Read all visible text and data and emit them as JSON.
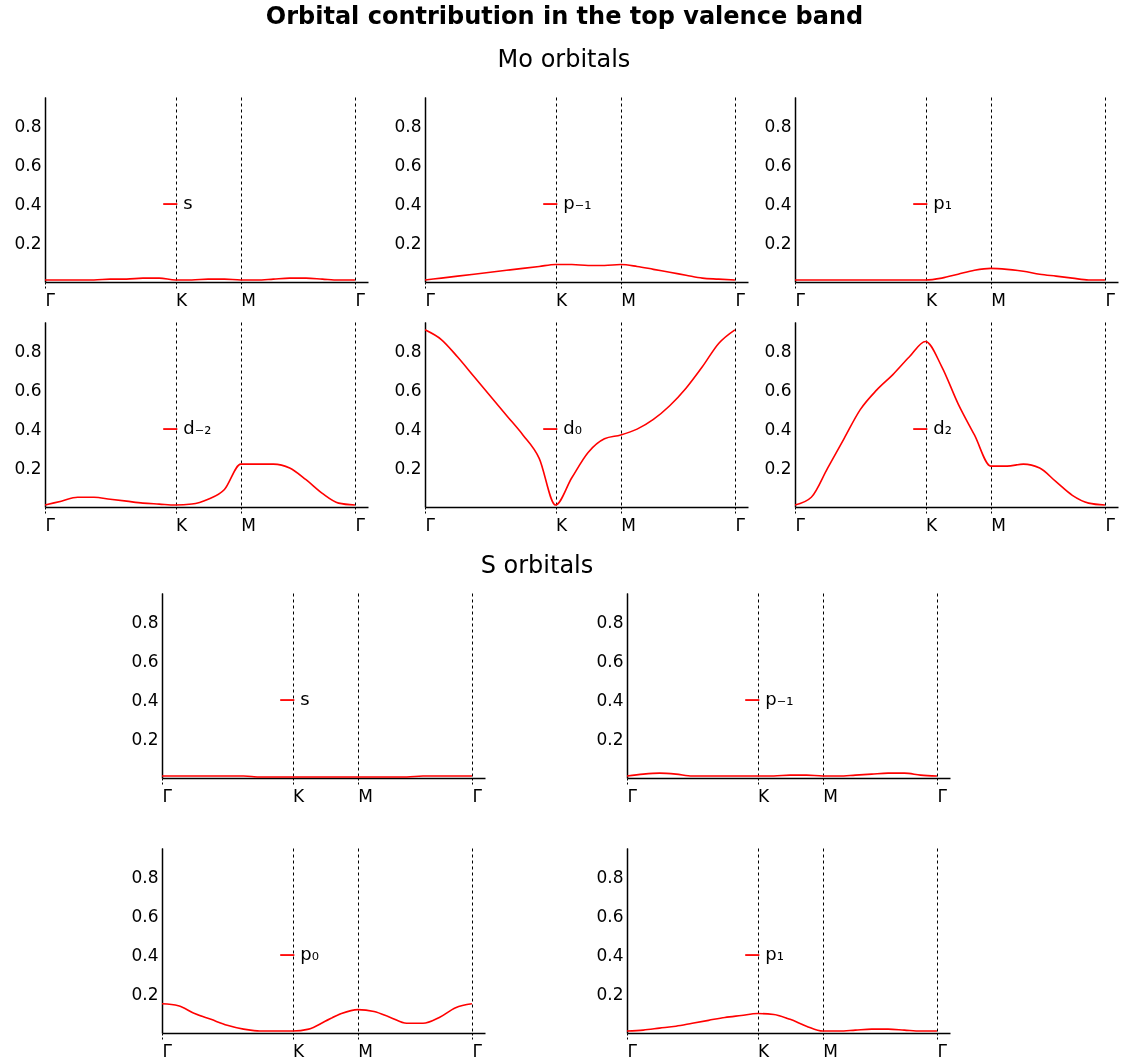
{
  "chart_data": [
    {
      "type": "line",
      "title": "Orbital contribution in the top valence band",
      "categories": [
        "Γ",
        null,
        null,
        null,
        null,
        null,
        null,
        null,
        "K",
        null,
        null,
        null,
        "M",
        null,
        null,
        null,
        null,
        null,
        null,
        "Γ"
      ],
      "series": [
        {
          "name": "s",
          "color": "#ff0000",
          "values": [
            0.01,
            0.01,
            0.01,
            0.01,
            0.015,
            0.015,
            0.02,
            0.02,
            0.01,
            0.01,
            0.015,
            0.015,
            0.01,
            0.01,
            0.015,
            0.02,
            0.02,
            0.015,
            0.01,
            0.01
          ]
        }
      ],
      "ylim": [
        0,
        0.95
      ],
      "yticks": [
        0.2,
        0.4,
        0.6,
        0.8
      ],
      "grid": "x",
      "legend": "center"
    },
    {
      "type": "line",
      "categories": [
        "Γ",
        null,
        null,
        null,
        null,
        null,
        null,
        null,
        "K",
        null,
        null,
        null,
        "M",
        null,
        null,
        null,
        null,
        null,
        null,
        "Γ"
      ],
      "subtitle": "Mo orbitals",
      "series": [
        {
          "name": "p₋₁",
          "color": "#ff0000",
          "values": [
            0.01,
            0.02,
            0.03,
            0.04,
            0.05,
            0.06,
            0.07,
            0.08,
            0.09,
            0.09,
            0.085,
            0.085,
            0.09,
            0.08,
            0.065,
            0.05,
            0.035,
            0.02,
            0.015,
            0.01
          ]
        }
      ],
      "ylim": [
        0,
        0.95
      ],
      "yticks": [
        0.2,
        0.4,
        0.6,
        0.8
      ],
      "grid": "x",
      "legend": "center"
    },
    {
      "type": "line",
      "categories": [
        "Γ",
        null,
        null,
        null,
        null,
        null,
        null,
        null,
        "K",
        null,
        null,
        null,
        "M",
        null,
        null,
        null,
        null,
        null,
        null,
        "Γ"
      ],
      "series": [
        {
          "name": "p₁",
          "color": "#ff0000",
          "values": [
            0.01,
            0.01,
            0.01,
            0.01,
            0.01,
            0.01,
            0.01,
            0.01,
            0.01,
            0.02,
            0.04,
            0.06,
            0.07,
            0.065,
            0.055,
            0.04,
            0.03,
            0.02,
            0.01,
            0.01
          ]
        }
      ],
      "ylim": [
        0,
        0.95
      ],
      "yticks": [
        0.2,
        0.4,
        0.6,
        0.8
      ],
      "grid": "x",
      "legend": "center"
    },
    {
      "type": "line",
      "categories": [
        "Γ",
        null,
        null,
        null,
        null,
        null,
        null,
        null,
        "K",
        null,
        null,
        null,
        "M",
        null,
        null,
        null,
        null,
        null,
        null,
        "Γ"
      ],
      "series": [
        {
          "name": "d₋₂",
          "color": "#ff0000",
          "values": [
            0.01,
            0.03,
            0.05,
            0.05,
            0.04,
            0.03,
            0.02,
            0.015,
            0.01,
            0.015,
            0.04,
            0.09,
            0.22,
            0.22,
            0.22,
            0.2,
            0.14,
            0.07,
            0.02,
            0.01
          ]
        }
      ],
      "ylim": [
        0,
        0.95
      ],
      "yticks": [
        0.2,
        0.4,
        0.6,
        0.8
      ],
      "grid": "x",
      "legend": "center"
    },
    {
      "type": "line",
      "categories": [
        "Γ",
        null,
        null,
        null,
        null,
        null,
        null,
        null,
        "K",
        null,
        null,
        null,
        "M",
        null,
        null,
        null,
        null,
        null,
        null,
        "Γ"
      ],
      "series": [
        {
          "name": "d₀",
          "color": "#ff0000",
          "values": [
            0.91,
            0.86,
            0.77,
            0.67,
            0.57,
            0.47,
            0.37,
            0.25,
            0.01,
            0.15,
            0.28,
            0.35,
            0.37,
            0.4,
            0.45,
            0.52,
            0.61,
            0.72,
            0.84,
            0.91
          ]
        }
      ],
      "ylim": [
        0,
        0.95
      ],
      "yticks": [
        0.2,
        0.4,
        0.6,
        0.8
      ],
      "grid": "x",
      "legend": "center"
    },
    {
      "type": "line",
      "categories": [
        "Γ",
        null,
        null,
        null,
        null,
        null,
        null,
        null,
        "K",
        null,
        null,
        null,
        "M",
        null,
        null,
        null,
        null,
        null,
        null,
        "Γ"
      ],
      "series": [
        {
          "name": "d₂",
          "color": "#ff0000",
          "values": [
            0.01,
            0.05,
            0.2,
            0.35,
            0.5,
            0.6,
            0.68,
            0.77,
            0.85,
            0.72,
            0.53,
            0.37,
            0.21,
            0.21,
            0.22,
            0.2,
            0.13,
            0.06,
            0.02,
            0.01
          ]
        }
      ],
      "ylim": [
        0,
        0.95
      ],
      "yticks": [
        0.2,
        0.4,
        0.6,
        0.8
      ],
      "grid": "x",
      "legend": "center"
    },
    {
      "type": "line",
      "subtitle": "S orbitals",
      "categories": [
        "Γ",
        null,
        null,
        null,
        null,
        null,
        null,
        null,
        "K",
        null,
        null,
        null,
        "M",
        null,
        null,
        null,
        null,
        null,
        null,
        "Γ"
      ],
      "series": [
        {
          "name": "s",
          "color": "#ff0000",
          "values": [
            0.01,
            0.01,
            0.01,
            0.01,
            0.01,
            0.01,
            0.005,
            0.005,
            0.005,
            0.005,
            0.005,
            0.005,
            0.005,
            0.005,
            0.005,
            0.005,
            0.01,
            0.01,
            0.01,
            0.01
          ]
        }
      ],
      "ylim": [
        0,
        0.95
      ],
      "yticks": [
        0.2,
        0.4,
        0.6,
        0.8
      ],
      "grid": "x",
      "legend": "center"
    },
    {
      "type": "line",
      "categories": [
        "Γ",
        null,
        null,
        null,
        null,
        null,
        null,
        null,
        "K",
        null,
        null,
        null,
        "M",
        null,
        null,
        null,
        null,
        null,
        null,
        "Γ"
      ],
      "series": [
        {
          "name": "p₋₁",
          "color": "#ff0000",
          "values": [
            0.01,
            0.02,
            0.025,
            0.02,
            0.01,
            0.01,
            0.01,
            0.01,
            0.01,
            0.01,
            0.015,
            0.015,
            0.01,
            0.01,
            0.015,
            0.02,
            0.025,
            0.025,
            0.015,
            0.01
          ]
        }
      ],
      "ylim": [
        0,
        0.95
      ],
      "yticks": [
        0.2,
        0.4,
        0.6,
        0.8
      ],
      "grid": "x",
      "legend": "center"
    },
    {
      "type": "line",
      "categories": [
        "Γ",
        null,
        null,
        null,
        null,
        null,
        null,
        null,
        "K",
        null,
        null,
        null,
        "M",
        null,
        null,
        null,
        null,
        null,
        null,
        "Γ"
      ],
      "series": [
        {
          "name": "p₀",
          "color": "#ff0000",
          "values": [
            0.15,
            0.14,
            0.1,
            0.07,
            0.04,
            0.02,
            0.01,
            0.01,
            0.01,
            0.02,
            0.06,
            0.1,
            0.12,
            0.11,
            0.08,
            0.05,
            0.05,
            0.08,
            0.13,
            0.15
          ]
        }
      ],
      "ylim": [
        0,
        0.95
      ],
      "yticks": [
        0.2,
        0.4,
        0.6,
        0.8
      ],
      "grid": "x",
      "legend": "center"
    },
    {
      "type": "line",
      "categories": [
        "Γ",
        null,
        null,
        null,
        null,
        null,
        null,
        null,
        "K",
        null,
        null,
        null,
        "M",
        null,
        null,
        null,
        null,
        null,
        null,
        "Γ"
      ],
      "series": [
        {
          "name": "p₁",
          "color": "#ff0000",
          "values": [
            0.01,
            0.015,
            0.025,
            0.035,
            0.05,
            0.065,
            0.08,
            0.09,
            0.1,
            0.095,
            0.07,
            0.035,
            0.01,
            0.01,
            0.015,
            0.02,
            0.02,
            0.015,
            0.01,
            0.01
          ]
        }
      ],
      "ylim": [
        0,
        0.95
      ],
      "yticks": [
        0.2,
        0.4,
        0.6,
        0.8
      ],
      "grid": "x",
      "legend": "center"
    }
  ]
}
